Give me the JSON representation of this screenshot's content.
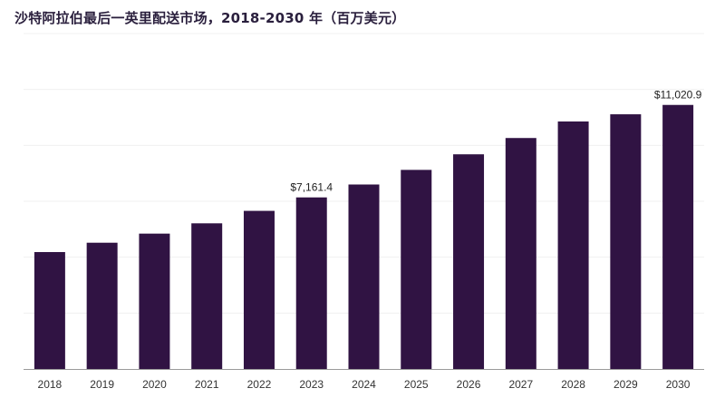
{
  "chart_data": {
    "type": "bar",
    "title": "沙特阿拉伯最后一英里配送市场，2018-2030 年（百万美元）",
    "xlabel": "",
    "ylabel": "",
    "categories": [
      "2018",
      "2019",
      "2020",
      "2021",
      "2022",
      "2023",
      "2024",
      "2025",
      "2026",
      "2027",
      "2028",
      "2029",
      "2030"
    ],
    "values": [
      4880,
      5270,
      5650,
      6080,
      6600,
      7161.4,
      7700,
      8310,
      8960,
      9640,
      10330,
      10630,
      11020.9
    ],
    "data_labels": [
      {
        "index": 5,
        "text": "$7,161.4"
      },
      {
        "index": 12,
        "text": "$11,020.9"
      }
    ],
    "ylim": [
      0,
      14000
    ],
    "grid": true,
    "legend": "none",
    "colors": {
      "bar": "#301343",
      "grid": "#f0f0f0",
      "axis": "#9a9a9a",
      "title": "#2a1f3d"
    }
  }
}
